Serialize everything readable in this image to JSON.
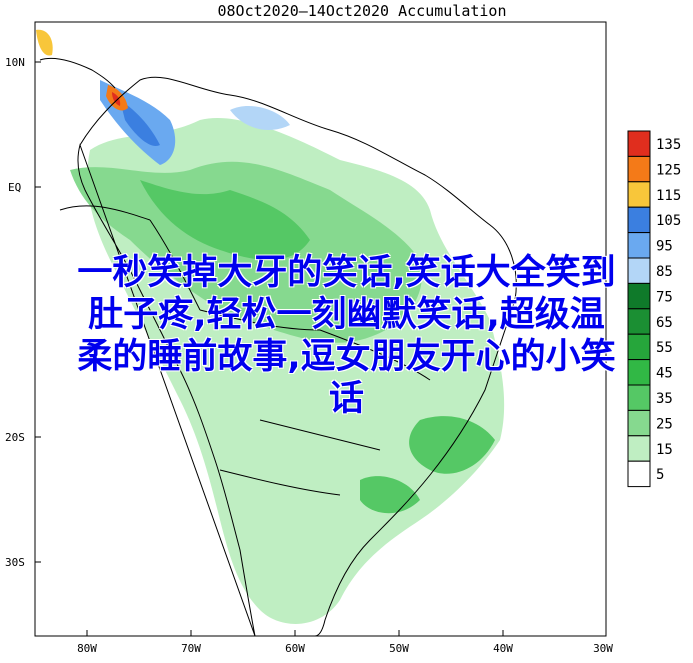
{
  "map": {
    "title": "08Oct2020—14Oct2020 Accumulation",
    "lat_labels": [
      "10N",
      "EQ",
      "20S",
      "30S"
    ],
    "lon_labels": [
      "80W",
      "70W",
      "60W",
      "50W",
      "40W",
      "30W"
    ]
  },
  "legend": {
    "labels": [
      "135",
      "125",
      "115",
      "105",
      "95",
      "85",
      "75",
      "65",
      "55",
      "45",
      "35",
      "25",
      "15",
      "5"
    ],
    "colors": [
      "#e02e1e",
      "#f47a18",
      "#f8c63a",
      "#3b7fe0",
      "#6aa9f0",
      "#b3d6f7",
      "#0f7a2a",
      "#1b8f33",
      "#26a63b",
      "#31b845",
      "#55c865",
      "#86d98f",
      "#bfeec2",
      "#ffffff"
    ]
  },
  "overlay": {
    "lines": [
      "一秒笑掉大牙的笑话,笑话大全笑到",
      "肚子疼,轻松一刻幽默笑话,超级温",
      "柔的睡前故事,逗女朋友开心的小笑",
      "话"
    ]
  }
}
